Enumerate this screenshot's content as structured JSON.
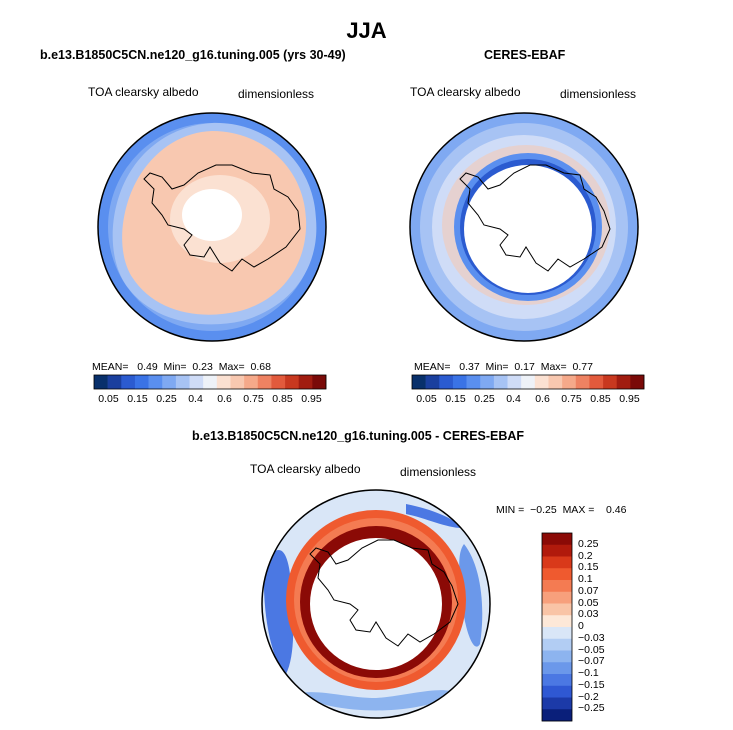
{
  "title": "JJA",
  "panel_model": {
    "title": "b.e13.B1850C5CN.ne120_g16.tuning.005 (yrs 30-49)",
    "left_label": "TOA clearsky albedo",
    "right_label": "dimensionless",
    "stats": {
      "mean_label": "MEAN=",
      "mean": "0.49",
      "min_label": "Min=",
      "min": "0.23",
      "max_label": "Max=",
      "max": "0.68"
    }
  },
  "panel_obs": {
    "title": "CERES-EBAF",
    "left_label": "TOA clearsky albedo",
    "right_label": "dimensionless",
    "stats": {
      "mean_label": "MEAN=",
      "mean": "0.37",
      "min_label": "Min=",
      "min": "0.17",
      "max_label": "Max=",
      "max": "0.77"
    }
  },
  "panel_diff": {
    "title": "b.e13.B1850C5CN.ne120_g16.tuning.005 - CERES-EBAF",
    "left_label": "TOA clearsky albedo",
    "right_label": "dimensionless",
    "stats": {
      "min_label": "MIN =",
      "min": "−0.25",
      "max_label": "MAX =",
      "max": "0.46"
    }
  },
  "colorbar_main": {
    "labels": [
      "0.05",
      "0.15",
      "0.25",
      "0.4",
      "0.6",
      "0.75",
      "0.85",
      "0.95"
    ],
    "colors": [
      "#08306b",
      "#1a3f9e",
      "#2b5bd0",
      "#3a73e6",
      "#5a8fef",
      "#7fa9f2",
      "#a7c3f4",
      "#cfdcf7",
      "#eef2f8",
      "#fbe1d2",
      "#f8c8b0",
      "#f5a98a",
      "#ee8262",
      "#e25a3c",
      "#c8381f",
      "#a11c10",
      "#7a0a08"
    ]
  },
  "colorbar_diff": {
    "labels": [
      "0.25",
      "0.2",
      "0.15",
      "0.1",
      "0.07",
      "0.05",
      "0.03",
      "0",
      "−0.03",
      "−0.05",
      "−0.07",
      "−0.1",
      "−0.15",
      "−0.2",
      "−0.25"
    ],
    "colors": [
      "#8b0a06",
      "#b11a0c",
      "#d9391a",
      "#ef5a2f",
      "#f47b52",
      "#f7a07c",
      "#f9c4a6",
      "#fde8d8",
      "#d9e6f7",
      "#b2cdf3",
      "#8db4ef",
      "#6b98ea",
      "#4b78e3",
      "#2f58d3",
      "#1c3aa8",
      "#0a1f7a"
    ]
  }
}
